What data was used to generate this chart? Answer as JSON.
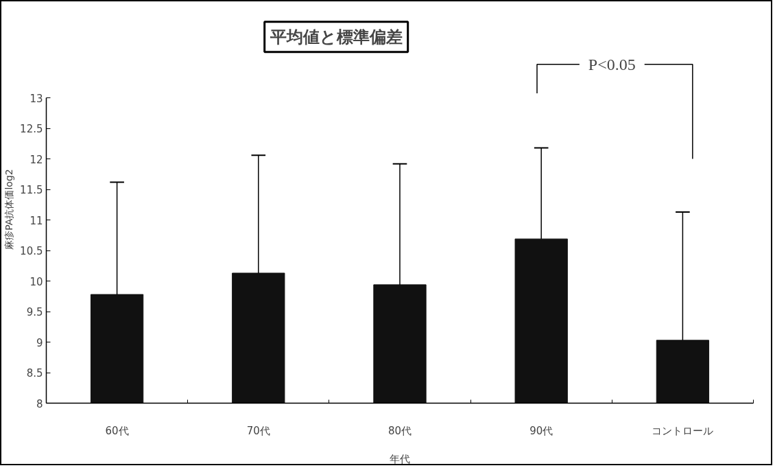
{
  "chart_data": {
    "type": "bar",
    "title": "平均値と標準偏差",
    "xlabel": "年代",
    "ylabel": "麻疹PA抗体価log2",
    "categories": [
      "60代",
      "70代",
      "80代",
      "90代",
      "コントロール"
    ],
    "values": [
      9.78,
      10.13,
      9.94,
      10.69,
      9.03
    ],
    "color": "#111111",
    "errors": [
      [
        9.78,
        11.62
      ],
      [
        10.13,
        12.06
      ],
      [
        9.94,
        11.92
      ],
      [
        10.69,
        12.18
      ],
      [
        9.03,
        11.13
      ]
    ],
    "ylim": [
      8,
      13
    ],
    "yticks": [
      8,
      8.5,
      9,
      9.5,
      10,
      10.5,
      11,
      11.5,
      12,
      12.5,
      13
    ],
    "annotations": [
      "P<0.05"
    ],
    "grid": false
  }
}
